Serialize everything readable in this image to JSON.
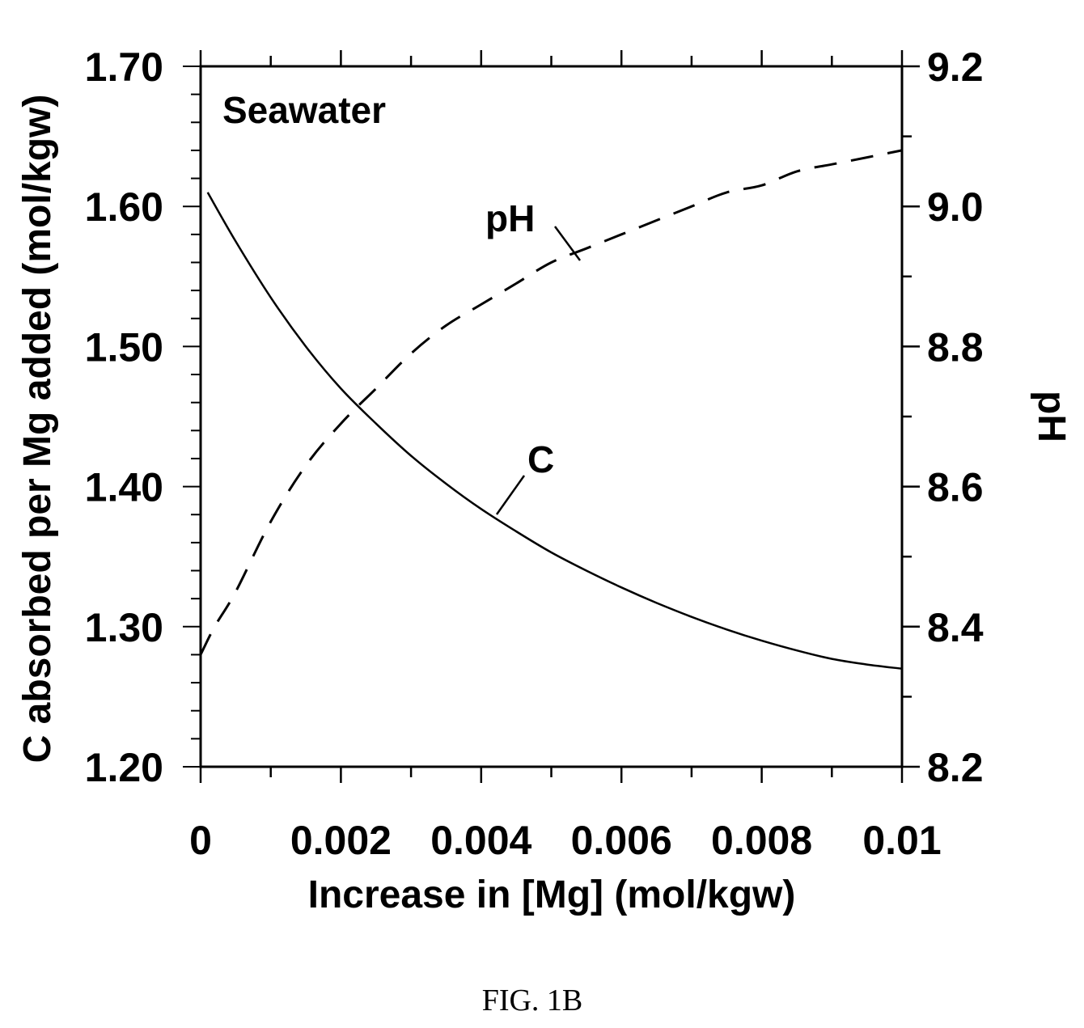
{
  "chart_data": {
    "type": "line",
    "xlabel": "Increase in [Mg] (mol/kgw)",
    "ylabel": "C absorbed per Mg added (mol/kgw)",
    "y2label": "pH",
    "xlim": [
      0,
      0.01
    ],
    "ylim": [
      1.2,
      1.7
    ],
    "y2lim": [
      8.2,
      9.2
    ],
    "x_ticks": [
      "0",
      "0.002",
      "0.004",
      "0.006",
      "0.008",
      "0.01"
    ],
    "y_ticks": [
      "1.20",
      "1.30",
      "1.40",
      "1.50",
      "1.60",
      "1.70"
    ],
    "y2_ticks": [
      "8.2",
      "8.4",
      "8.6",
      "8.8",
      "9.0",
      "9.2"
    ],
    "grid": false,
    "annotations": {
      "panel": "Seawater",
      "c_label": "C",
      "ph_label": "pH"
    },
    "series": [
      {
        "name": "C",
        "axis": "left",
        "style": "solid",
        "x": [
          0.0001,
          0.0005,
          0.001,
          0.0015,
          0.002,
          0.0025,
          0.003,
          0.0035,
          0.004,
          0.0045,
          0.005,
          0.0055,
          0.006,
          0.0065,
          0.007,
          0.0075,
          0.008,
          0.0085,
          0.009,
          0.0095,
          0.01
        ],
        "values": [
          1.61,
          1.575,
          1.535,
          1.5,
          1.47,
          1.445,
          1.422,
          1.402,
          1.384,
          1.368,
          1.353,
          1.34,
          1.328,
          1.317,
          1.307,
          1.298,
          1.29,
          1.283,
          1.277,
          1.273,
          1.27
        ]
      },
      {
        "name": "pH",
        "axis": "right",
        "style": "dashed",
        "x": [
          0.0,
          0.0002,
          0.0005,
          0.001,
          0.0015,
          0.002,
          0.0025,
          0.003,
          0.0035,
          0.004,
          0.0045,
          0.005,
          0.0055,
          0.006,
          0.0065,
          0.007,
          0.0075,
          0.008,
          0.0085,
          0.009,
          0.0095,
          0.01
        ],
        "values": [
          8.36,
          8.4,
          8.45,
          8.55,
          8.63,
          8.69,
          8.74,
          8.79,
          8.83,
          8.86,
          8.89,
          8.92,
          8.94,
          8.96,
          8.98,
          9.0,
          9.02,
          9.03,
          9.05,
          9.06,
          9.07,
          9.08
        ]
      }
    ]
  },
  "figure_caption": "FIG. 1B"
}
